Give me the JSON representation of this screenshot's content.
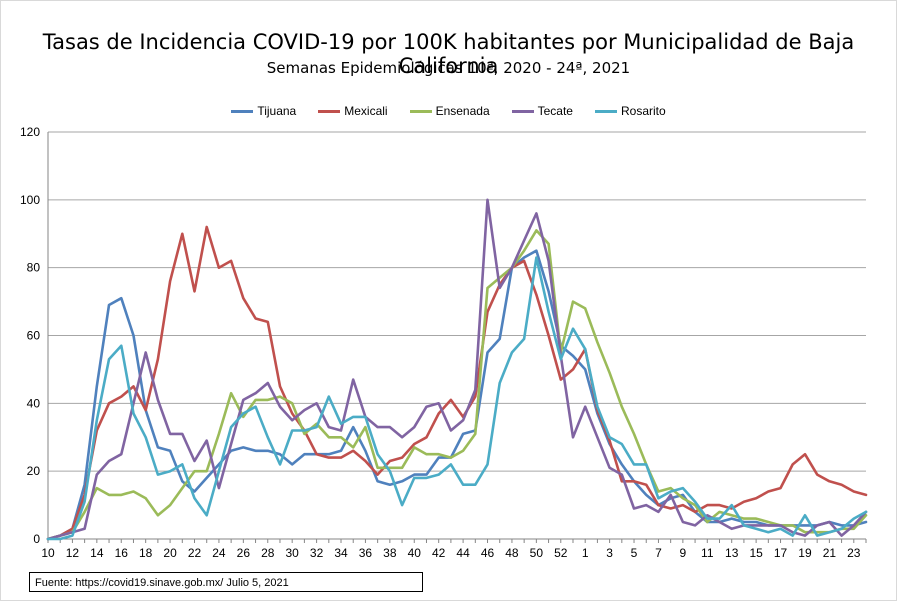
{
  "colors": {
    "Tijuana": "#4f81bd",
    "Mexicali": "#c0504d",
    "Ensenada": "#9bbb59",
    "Tecate": "#8064a2",
    "Rosarito": "#4bacc6",
    "grid": "#a6a6a6"
  },
  "source_text": "Fuente:  https://covid19.sinave.gob.mx/     Julio 5, 2021",
  "chart_data": {
    "type": "line",
    "title": "Tasas de Incidencia COVID-19 por 100K habitantes por Municipalidad de Baja California",
    "subtitle": "Semanas Epidemiológicas 10ª, 2020  -  24ª, 2021",
    "xlabel": "",
    "ylabel": "",
    "ylim": [
      0,
      120
    ],
    "yticks": [
      0,
      20,
      40,
      60,
      80,
      100,
      120
    ],
    "grid": true,
    "legend_position": "top",
    "x_tick_labels": [
      "10",
      "12",
      "14",
      "16",
      "18",
      "20",
      "22",
      "24",
      "26",
      "28",
      "30",
      "32",
      "34",
      "36",
      "38",
      "40",
      "42",
      "44",
      "46",
      "48",
      "50",
      "52",
      "1",
      "3",
      "5",
      "7",
      "9",
      "11",
      "13",
      "15",
      "17",
      "19",
      "21",
      "23"
    ],
    "categories": [
      "10",
      "11",
      "12",
      "13",
      "14",
      "15",
      "16",
      "17",
      "18",
      "19",
      "20",
      "21",
      "22",
      "23",
      "24",
      "25",
      "26",
      "27",
      "28",
      "29",
      "30",
      "31",
      "32",
      "33",
      "34",
      "35",
      "36",
      "37",
      "38",
      "39",
      "40",
      "41",
      "42",
      "43",
      "44",
      "45",
      "46",
      "47",
      "48",
      "49",
      "50",
      "51",
      "52",
      "53",
      "1",
      "2",
      "3",
      "4",
      "5",
      "6",
      "7",
      "8",
      "9",
      "10",
      "11",
      "12",
      "13",
      "14",
      "15",
      "16",
      "17",
      "18",
      "19",
      "20",
      "21",
      "22",
      "23",
      "24"
    ],
    "series": [
      {
        "name": "Tijuana",
        "values": [
          0,
          1,
          3,
          16,
          45,
          69,
          71,
          60,
          38,
          27,
          26,
          17,
          14,
          18,
          22,
          26,
          27,
          26,
          26,
          25,
          22,
          25,
          25,
          25,
          26,
          33,
          26,
          17,
          16,
          17,
          19,
          19,
          24,
          24,
          31,
          32,
          55,
          59,
          80,
          83,
          85,
          73,
          57,
          54,
          50,
          37,
          28,
          22,
          17,
          13,
          10,
          12,
          13,
          8,
          5,
          5,
          6,
          5,
          5,
          4,
          4,
          4,
          4,
          4,
          5,
          4,
          4,
          5
        ]
      },
      {
        "name": "Mexicali",
        "values": [
          0,
          1,
          3,
          13,
          32,
          40,
          42,
          45,
          38,
          53,
          76,
          90,
          73,
          92,
          80,
          82,
          71,
          65,
          64,
          45,
          37,
          32,
          25,
          24,
          24,
          26,
          23,
          19,
          23,
          24,
          28,
          30,
          37,
          41,
          36,
          42,
          67,
          75,
          80,
          82,
          72,
          60,
          47,
          50,
          56,
          38,
          29,
          17,
          17,
          16,
          10,
          9,
          10,
          8,
          10,
          10,
          9,
          11,
          12,
          14,
          15,
          22,
          25,
          19,
          17,
          16,
          14,
          13
        ]
      },
      {
        "name": "Ensenada",
        "values": [
          0,
          1,
          2,
          8,
          15,
          13,
          13,
          14,
          12,
          7,
          10,
          15,
          20,
          20,
          31,
          43,
          36,
          41,
          41,
          42,
          40,
          31,
          34,
          30,
          30,
          27,
          33,
          21,
          21,
          21,
          27,
          25,
          25,
          24,
          26,
          31,
          74,
          77,
          80,
          85,
          91,
          87,
          55,
          70,
          68,
          58,
          49,
          39,
          31,
          22,
          14,
          15,
          12,
          10,
          5,
          8,
          7,
          6,
          6,
          5,
          4,
          4,
          2,
          2,
          2,
          3,
          3,
          7
        ]
      },
      {
        "name": "Tecate",
        "values": [
          0,
          1,
          2,
          3,
          19,
          23,
          25,
          40,
          55,
          41,
          31,
          31,
          23,
          29,
          15,
          28,
          41,
          43,
          46,
          39,
          35,
          38,
          40,
          33,
          32,
          47,
          36,
          33,
          33,
          30,
          33,
          39,
          40,
          32,
          35,
          44,
          100,
          74,
          80,
          88,
          96,
          82,
          54,
          30,
          39,
          30,
          21,
          19,
          9,
          10,
          8,
          13,
          5,
          4,
          7,
          5,
          3,
          4,
          4,
          4,
          4,
          2,
          1,
          4,
          5,
          1,
          4,
          8
        ]
      },
      {
        "name": "Rosarito",
        "values": [
          0,
          0,
          1,
          11,
          35,
          53,
          57,
          37,
          30,
          19,
          20,
          22,
          12,
          7,
          20,
          33,
          37,
          39,
          30,
          22,
          32,
          32,
          33,
          42,
          34,
          36,
          36,
          25,
          20,
          10,
          18,
          18,
          19,
          22,
          16,
          16,
          22,
          46,
          55,
          59,
          83,
          67,
          53,
          62,
          56,
          39,
          30,
          28,
          22,
          22,
          12,
          14,
          15,
          11,
          6,
          6,
          10,
          4,
          3,
          2,
          3,
          1,
          7,
          1,
          2,
          3,
          6,
          8
        ]
      }
    ]
  }
}
